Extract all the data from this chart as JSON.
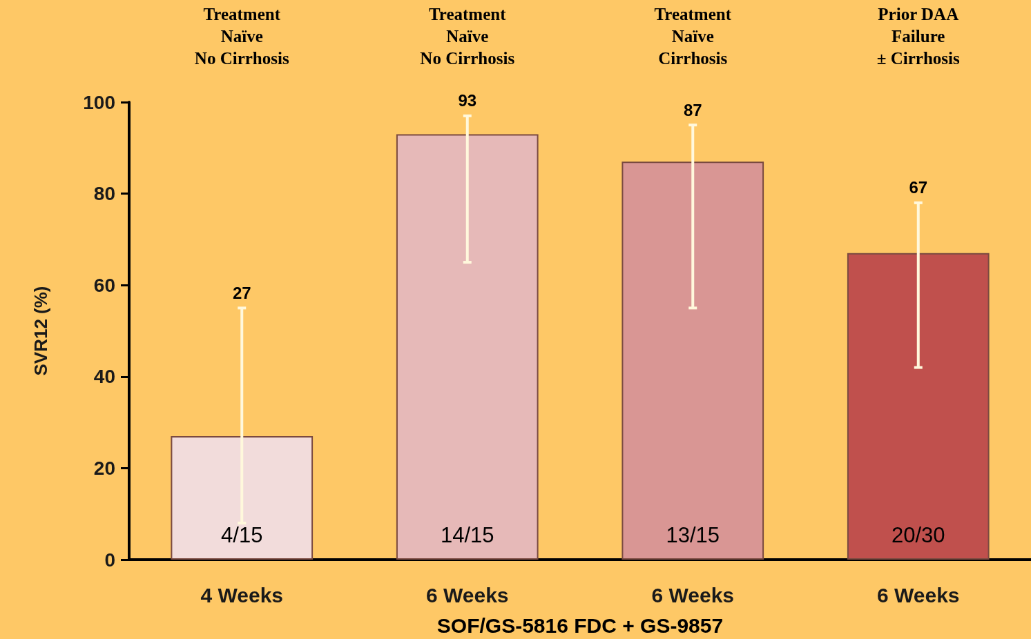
{
  "chart_data": {
    "type": "bar",
    "categories": [
      "4 Weeks",
      "6 Weeks",
      "6 Weeks",
      "6 Weeks"
    ],
    "values": [
      27,
      93,
      87,
      67
    ],
    "colors": [
      "#f2dcdb",
      "#e6b9b8",
      "#d99694",
      "#c0504d"
    ],
    "errors": [
      [
        8,
        55
      ],
      [
        65,
        97
      ],
      [
        55,
        95
      ],
      [
        42,
        78
      ]
    ],
    "value_labels": [
      null,
      "93",
      "87",
      null
    ],
    "ylabel": "SVR12 (%)",
    "xlabel": "SOF/GS-5816 FDC + GS-9857",
    "ylim": [
      0,
      100
    ],
    "yticks": [
      0,
      20,
      40,
      60,
      80,
      100
    ],
    "grid": false,
    "annotations": [
      "Treatment\nNaïve\nNo Cirrhosis",
      "Treatment\nNaïve\nNo Cirrhosis",
      "Treatment\nNaïve\nCirrhosis",
      "Prior DAA\nFailure\n± Cirrhosis",
      "4/15",
      "14/15",
      "13/15",
      "20/30",
      {
        "text": "27",
        "x": "4 Weeks",
        "y": 55
      },
      "67"
    ]
  }
}
